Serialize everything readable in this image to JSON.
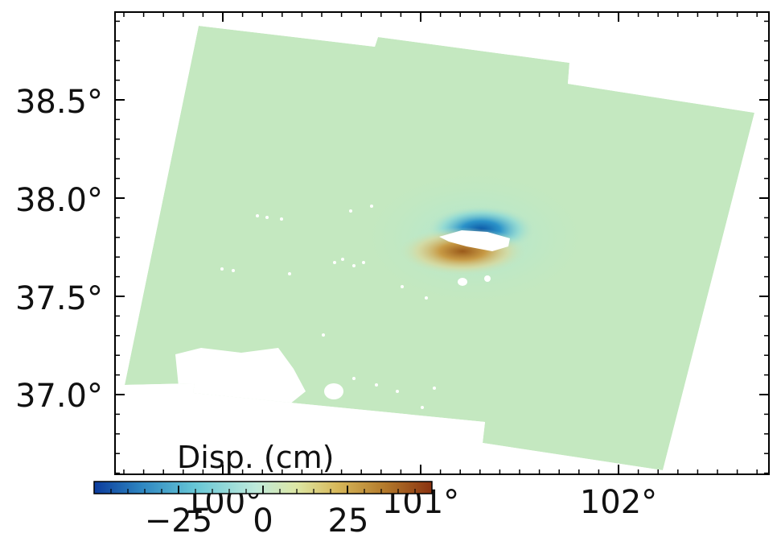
{
  "map": {
    "x_ticks": [
      {
        "value": 100,
        "label": "100°"
      },
      {
        "value": 101,
        "label": "101°"
      },
      {
        "value": 102,
        "label": "102°"
      }
    ],
    "y_ticks": [
      {
        "value": 37.0,
        "label": "37.0°"
      },
      {
        "value": 37.5,
        "label": "37.5°"
      },
      {
        "value": 38.0,
        "label": "38.0°"
      },
      {
        "value": 38.5,
        "label": "38.5°"
      }
    ],
    "colors": {
      "background_field": "#c4e8c0",
      "frame": "#000000",
      "no_data": "#ffffff"
    }
  },
  "colorbar": {
    "title": "Disp. (cm)",
    "ticks": [
      {
        "value": -25,
        "label": "−25"
      },
      {
        "value": 0,
        "label": "0"
      },
      {
        "value": 25,
        "label": "25"
      }
    ],
    "colormap": [
      "#0c3b9c",
      "#2e86c1",
      "#67c7d6",
      "#bfeadb",
      "#dde7a4",
      "#d7b85a",
      "#b37a2b",
      "#8a3210"
    ]
  }
}
